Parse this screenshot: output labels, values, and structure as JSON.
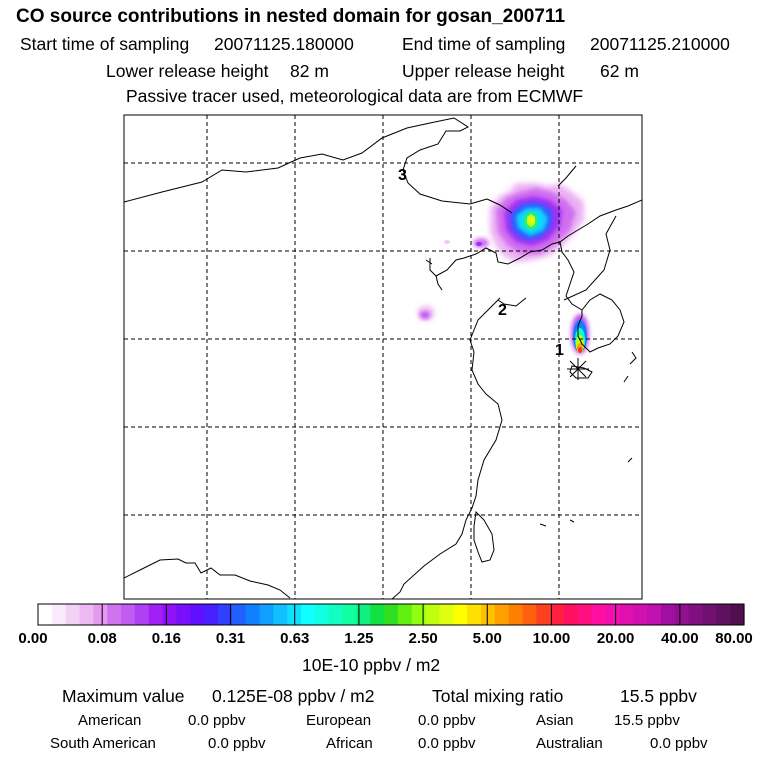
{
  "header": {
    "title": "CO  source contributions in nested domain for gosan_200711",
    "start_label": "Start time of sampling",
    "start_value": "20071125.180000",
    "end_label": "End time of sampling",
    "end_value": "20071125.210000",
    "lower_label": "Lower release height",
    "lower_value": "82 m",
    "upper_label": "Upper release height",
    "upper_value": "62 m",
    "note": "Passive tracer used, meteorological data are from ECMWF"
  },
  "map": {
    "labels": [
      "1",
      "2",
      "3"
    ],
    "receptor_marker": "asterisk-icon"
  },
  "colorbar": {
    "ticks": [
      "0.00",
      "0.08",
      "0.16",
      "0.31",
      "0.63",
      "1.25",
      "2.50",
      "5.00",
      "10.00",
      "20.00",
      "40.00",
      "80.00"
    ],
    "unit": "10E-10 ppbv / m2",
    "colors": [
      "#ffffff",
      "#fbeafb",
      "#f4d2f6",
      "#ecb9f3",
      "#e699f0",
      "#cf72ee",
      "#c05df0",
      "#b040f3",
      "#a020f5",
      "#9010f8",
      "#7a10fb",
      "#6010ff",
      "#4820ff",
      "#3040ff",
      "#2060ff",
      "#1080ff",
      "#10a0ff",
      "#10c0ff",
      "#10e0ff",
      "#10ffff",
      "#10ffe0",
      "#10ffc0",
      "#10ffa0",
      "#10f080",
      "#10e040",
      "#30e020",
      "#60f010",
      "#90ff10",
      "#c0ff10",
      "#e0ff10",
      "#ffff00",
      "#ffe000",
      "#ffc000",
      "#ffa000",
      "#ff8000",
      "#ff6010",
      "#ff4020",
      "#ff2040",
      "#ff1060",
      "#ff1080",
      "#ff10a0",
      "#f010b0",
      "#e010b0",
      "#d010b0",
      "#c010b0",
      "#a010a0",
      "#901090",
      "#801080",
      "#701070",
      "#601060",
      "#501050"
    ]
  },
  "footer": {
    "max_label": "Maximum value",
    "max_value": "0.125E-08 ppbv / m2",
    "total_label": "Total mixing ratio",
    "total_value": "15.5 ppbv",
    "regions": [
      {
        "name": "American",
        "value": "0.0 ppbv"
      },
      {
        "name": "European",
        "value": "0.0 ppbv"
      },
      {
        "name": "Asian",
        "value": "15.5 ppbv"
      },
      {
        "name": "South American",
        "value": "0.0 ppbv"
      },
      {
        "name": "African",
        "value": "0.0 ppbv"
      },
      {
        "name": "Australian",
        "value": "0.0 ppbv"
      }
    ]
  }
}
